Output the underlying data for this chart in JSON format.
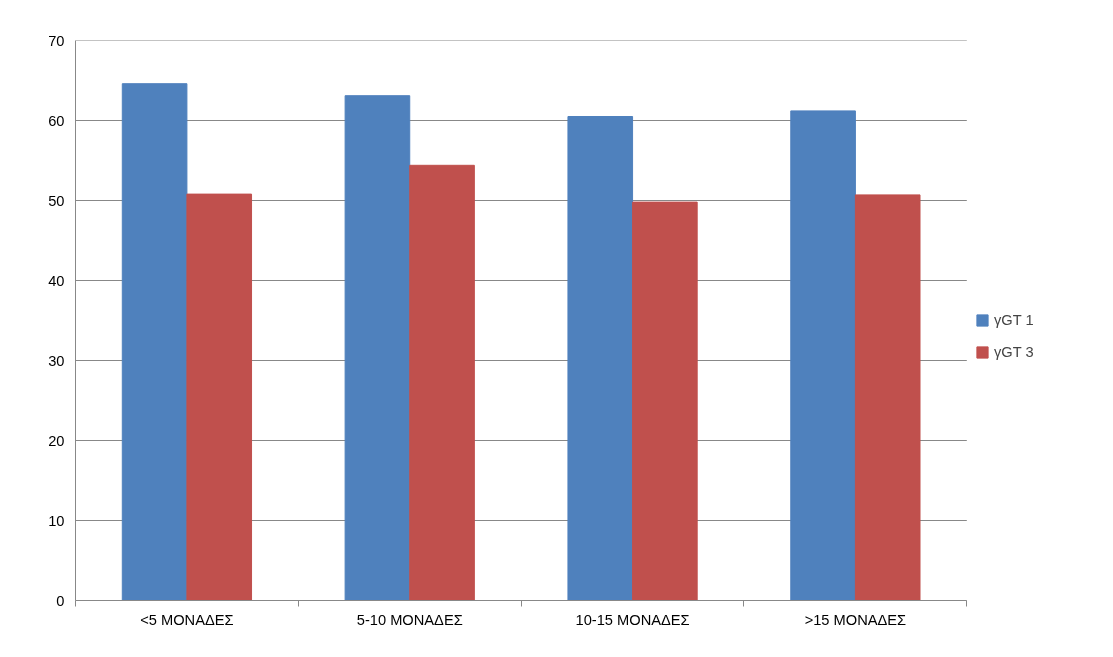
{
  "chart_data": {
    "type": "bar",
    "categories": [
      "<5 ΜΟΝΑΔΕΣ",
      "5-10 ΜΟΝΑΔΕΣ",
      "10-15 ΜΟΝΑΔΕΣ",
      ">15 ΜΟΝΑΔΕΣ"
    ],
    "series": [
      {
        "name": "γGT 1",
        "color": "#4f81bd",
        "values": [
          64.6,
          63.1,
          60.5,
          61.2
        ]
      },
      {
        "name": "γGT 3",
        "color": "#c0504d",
        "values": [
          50.8,
          54.4,
          49.8,
          50.7
        ]
      }
    ],
    "ylim": [
      0,
      70
    ],
    "yticks": [
      0,
      10,
      20,
      30,
      40,
      50,
      60,
      70
    ],
    "grid": "y",
    "legend": "right"
  }
}
